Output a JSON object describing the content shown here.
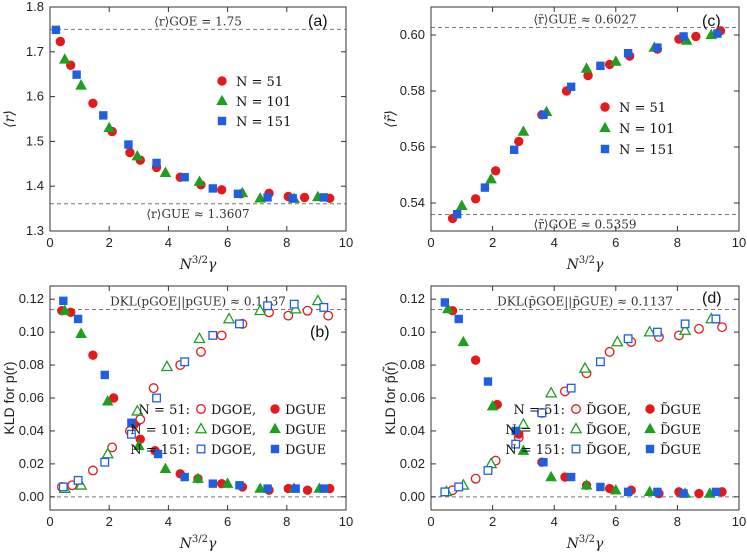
{
  "colors": {
    "n51": "#e31a1c",
    "n101": "#1f9e1f",
    "n151": "#1f5fe0",
    "frame": "#333333",
    "refline": "#777777"
  },
  "legend_r": [
    {
      "key": "n51",
      "shape": "circle",
      "label": "N = 51"
    },
    {
      "key": "n101",
      "shape": "triangle",
      "label": "N = 101"
    },
    {
      "key": "n151",
      "shape": "square",
      "label": "N = 151"
    }
  ],
  "legend_kld": [
    {
      "key": "n51",
      "open": "circle",
      "label": "N = 51:"
    },
    {
      "key": "n101",
      "open": "triangle",
      "label": "N = 101:"
    },
    {
      "key": "n151",
      "open": "square",
      "label": "N = 151:"
    }
  ],
  "chart_data": [
    {
      "id": "a",
      "panel_label": "(a)",
      "type": "scatter",
      "xlabel": "N^{3/2}γ",
      "ylabel": "⟨r⟩",
      "xlim": [
        0,
        10
      ],
      "ylim": [
        1.3,
        1.8
      ],
      "xticks": [
        0,
        2,
        4,
        6,
        8,
        10
      ],
      "yticks": [
        1.3,
        1.4,
        1.5,
        1.6,
        1.7,
        1.8
      ],
      "ref_lines": [
        {
          "y": 1.75,
          "label": "⟨r⟩GOE = 1.75",
          "label_pos": "above"
        },
        {
          "y": 1.3607,
          "label": "⟨r⟩GUE ≈ 1.3607",
          "label_pos": "below"
        }
      ],
      "legend_position": "center-right",
      "series": [
        {
          "name": "N = 51",
          "key": "n51",
          "marker": "circle",
          "filled": true,
          "x": [
            0.35,
            0.7,
            1.45,
            2.1,
            2.7,
            3.05,
            3.6,
            4.4,
            5.1,
            5.8,
            6.45,
            7.4,
            8.05,
            8.6,
            9.45
          ],
          "y": [
            1.723,
            1.67,
            1.585,
            1.522,
            1.475,
            1.458,
            1.442,
            1.42,
            1.403,
            1.392,
            1.383,
            1.384,
            1.377,
            1.375,
            1.373
          ]
        },
        {
          "name": "N = 101",
          "key": "n101",
          "marker": "triangle",
          "filled": true,
          "x": [
            0.5,
            1.05,
            2.0,
            2.95,
            3.9,
            5.05,
            6.5,
            7.1,
            8.25,
            9.05
          ],
          "y": [
            1.683,
            1.625,
            1.53,
            1.467,
            1.43,
            1.41,
            1.385,
            1.373,
            1.372,
            1.376
          ]
        },
        {
          "name": "N = 151",
          "key": "n151",
          "marker": "square",
          "filled": true,
          "x": [
            0.2,
            0.9,
            1.8,
            2.65,
            3.6,
            4.55,
            5.5,
            6.35,
            7.35,
            8.2,
            9.25
          ],
          "y": [
            1.749,
            1.649,
            1.558,
            1.493,
            1.452,
            1.42,
            1.395,
            1.383,
            1.375,
            1.373,
            1.375
          ]
        }
      ]
    },
    {
      "id": "c",
      "panel_label": "(c)",
      "type": "scatter",
      "xlabel": "N^{3/2}γ",
      "ylabel": "⟨r̃⟩",
      "xlim": [
        0,
        10
      ],
      "ylim": [
        0.53,
        0.61
      ],
      "xticks": [
        0,
        2,
        4,
        6,
        8,
        10
      ],
      "yticks": [
        0.54,
        0.56,
        0.58,
        0.6
      ],
      "ref_lines": [
        {
          "y": 0.6027,
          "label": "⟨r̃⟩GUE ≈ 0.6027",
          "label_pos": "above"
        },
        {
          "y": 0.5359,
          "label": "⟨r̃⟩GOE ≈ 0.5359",
          "label_pos": "below"
        }
      ],
      "legend_position": "center-right",
      "series": [
        {
          "name": "N = 51",
          "key": "n51",
          "marker": "circle",
          "filled": true,
          "x": [
            0.7,
            1.45,
            2.1,
            2.85,
            3.6,
            4.4,
            5.1,
            5.8,
            6.45,
            7.35,
            8.05,
            8.6,
            9.4
          ],
          "y": [
            0.5345,
            0.5415,
            0.5515,
            0.562,
            0.5715,
            0.58,
            0.5855,
            0.5895,
            0.5925,
            0.595,
            0.5985,
            0.5995,
            0.6015
          ]
        },
        {
          "name": "N = 101",
          "key": "n101",
          "marker": "triangle",
          "filled": true,
          "x": [
            1.0,
            1.95,
            3.0,
            3.75,
            5.05,
            6.0,
            7.25,
            8.3,
            9.1
          ],
          "y": [
            0.539,
            0.5485,
            0.5655,
            0.5725,
            0.588,
            0.5905,
            0.5955,
            0.598,
            0.6
          ]
        },
        {
          "name": "N = 151",
          "key": "n151",
          "marker": "square",
          "filled": true,
          "x": [
            0.85,
            1.75,
            2.7,
            3.65,
            4.55,
            5.5,
            6.4,
            7.35,
            8.2,
            9.3
          ],
          "y": [
            0.536,
            0.5455,
            0.559,
            0.5715,
            0.5815,
            0.589,
            0.5935,
            0.5955,
            0.5995,
            0.6005
          ]
        }
      ]
    },
    {
      "id": "b",
      "panel_label": "(b)",
      "type": "scatter",
      "xlabel": "N^{3/2}γ",
      "ylabel": "KLD for p(r)",
      "xlim": [
        0,
        10
      ],
      "ylim": [
        -0.008,
        0.128
      ],
      "xticks": [
        0,
        2,
        4,
        6,
        8,
        10
      ],
      "yticks": [
        0.0,
        0.02,
        0.04,
        0.06,
        0.08,
        0.1,
        0.12
      ],
      "ref_lines": [
        {
          "y": 0.1137,
          "label": "DKL(pGOE||pGUE) ≈ 0.1137",
          "label_pos": "above"
        },
        {
          "y": 0.0,
          "label": "",
          "label_pos": "none"
        }
      ],
      "legend_position": "center-right",
      "legend_entries": [
        {
          "label": "N = 51:",
          "open_label": "DGOE,",
          "filled_label": "DGUE"
        },
        {
          "label": "N = 101:",
          "open_label": "DGOE,",
          "filled_label": "DGUE"
        },
        {
          "label": "N = 151:",
          "open_label": "DGOE,",
          "filled_label": "DGUE"
        }
      ],
      "series": [
        {
          "name": "N = 51 DGOE",
          "key": "n51",
          "marker": "circle",
          "filled": false,
          "x": [
            0.4,
            0.75,
            1.45,
            2.1,
            2.7,
            3.05,
            3.5,
            4.4,
            5.1,
            5.8,
            6.5,
            7.4,
            8.05,
            8.7,
            9.4
          ],
          "y": [
            0.006,
            0.007,
            0.016,
            0.03,
            0.04,
            0.047,
            0.066,
            0.08,
            0.088,
            0.098,
            0.105,
            0.112,
            0.11,
            0.113,
            0.11
          ]
        },
        {
          "name": "N = 51 DGUE",
          "key": "n51",
          "marker": "circle",
          "filled": true,
          "x": [
            0.4,
            0.7,
            1.45,
            2.15,
            2.85,
            3.05,
            3.55,
            4.4,
            5.0,
            5.8,
            6.5,
            7.4,
            8.05,
            8.7,
            9.45
          ],
          "y": [
            0.113,
            0.112,
            0.086,
            0.06,
            0.044,
            0.035,
            0.028,
            0.014,
            0.011,
            0.008,
            0.006,
            0.004,
            0.005,
            0.004,
            0.005
          ]
        },
        {
          "name": "N = 101 DGOE",
          "key": "n101",
          "marker": "triangle",
          "filled": false,
          "x": [
            0.5,
            1.05,
            1.95,
            2.95,
            3.95,
            5.05,
            6.05,
            7.1,
            8.3,
            9.05
          ],
          "y": [
            0.005,
            0.007,
            0.026,
            0.052,
            0.079,
            0.096,
            0.108,
            0.113,
            0.114,
            0.119
          ]
        },
        {
          "name": "N = 101 DGUE",
          "key": "n101",
          "marker": "triangle",
          "filled": true,
          "x": [
            0.5,
            1.05,
            1.95,
            3.0,
            3.9,
            5.0,
            6.0,
            7.1,
            8.25,
            9.1
          ],
          "y": [
            0.113,
            0.099,
            0.058,
            0.031,
            0.017,
            0.011,
            0.008,
            0.005,
            0.005,
            0.005
          ]
        },
        {
          "name": "N = 151 DGOE",
          "key": "n151",
          "marker": "square",
          "filled": false,
          "x": [
            0.45,
            0.95,
            1.85,
            2.75,
            3.6,
            4.55,
            5.5,
            6.4,
            7.35,
            8.25,
            9.25
          ],
          "y": [
            0.006,
            0.01,
            0.021,
            0.038,
            0.06,
            0.082,
            0.098,
            0.105,
            0.116,
            0.117,
            0.115
          ]
        },
        {
          "name": "N = 151 DGUE",
          "key": "n151",
          "marker": "square",
          "filled": true,
          "x": [
            0.45,
            0.95,
            1.85,
            2.75,
            3.65,
            4.55,
            5.5,
            6.4,
            7.35,
            8.3,
            9.25
          ],
          "y": [
            0.119,
            0.108,
            0.074,
            0.045,
            0.026,
            0.012,
            0.008,
            0.007,
            0.005,
            0.005,
            0.005
          ]
        }
      ]
    },
    {
      "id": "d",
      "panel_label": "(d)",
      "type": "scatter",
      "xlabel": "N^{3/2}γ",
      "ylabel": "KLD for p̃(r̃)",
      "xlim": [
        0,
        10
      ],
      "ylim": [
        -0.008,
        0.128
      ],
      "xticks": [
        0,
        2,
        4,
        6,
        8,
        10
      ],
      "yticks": [
        0.0,
        0.02,
        0.04,
        0.06,
        0.08,
        0.1,
        0.12
      ],
      "ref_lines": [
        {
          "y": 0.1137,
          "label": "DKL(p̃GOE||p̃GUE) ≈ 0.1137",
          "label_pos": "above"
        },
        {
          "y": 0.0,
          "label": "",
          "label_pos": "none"
        }
      ],
      "legend_position": "center-right",
      "legend_entries": [
        {
          "label": "N = 51:",
          "open_label": "D̃GOE,",
          "filled_label": "D̃GUE"
        },
        {
          "label": "N = 101:",
          "open_label": "D̃GOE,",
          "filled_label": "D̃GUE"
        },
        {
          "label": "N = 151:",
          "open_label": "D̃GOE,",
          "filled_label": "D̃GUE"
        }
      ],
      "series": [
        {
          "name": "N = 51 D̃GOE",
          "key": "n51",
          "marker": "circle",
          "filled": false,
          "x": [
            0.7,
            1.45,
            2.1,
            2.85,
            3.6,
            4.35,
            5.05,
            5.8,
            6.5,
            7.4,
            8.05,
            8.7,
            9.45
          ],
          "y": [
            0.004,
            0.011,
            0.022,
            0.036,
            0.051,
            0.064,
            0.075,
            0.088,
            0.094,
            0.097,
            0.098,
            0.102,
            0.103
          ]
        },
        {
          "name": "N = 51 D̃GUE",
          "key": "n51",
          "marker": "circle",
          "filled": true,
          "x": [
            0.7,
            1.45,
            2.15,
            2.85,
            3.6,
            4.35,
            5.05,
            5.8,
            6.5,
            7.4,
            8.05,
            8.7,
            9.45
          ],
          "y": [
            0.113,
            0.083,
            0.056,
            0.038,
            0.021,
            0.012,
            0.007,
            0.005,
            0.004,
            0.002,
            0.003,
            0.002,
            0.003
          ]
        },
        {
          "name": "N = 101 D̃GOE",
          "key": "n101",
          "marker": "triangle",
          "filled": false,
          "x": [
            0.5,
            1.05,
            1.95,
            3.0,
            3.9,
            5.0,
            6.05,
            7.1,
            8.25,
            9.1
          ],
          "y": [
            0.003,
            0.007,
            0.02,
            0.044,
            0.063,
            0.078,
            0.094,
            0.1,
            0.101,
            0.108
          ]
        },
        {
          "name": "N = 101 D̃GUE",
          "key": "n101",
          "marker": "triangle",
          "filled": true,
          "x": [
            0.55,
            1.05,
            2.0,
            3.0,
            3.9,
            5.05,
            6.0,
            7.1,
            8.25,
            9.05
          ],
          "y": [
            0.114,
            0.094,
            0.055,
            0.028,
            0.012,
            0.007,
            0.004,
            0.003,
            0.002,
            0.002
          ]
        },
        {
          "name": "N = 151 D̃GOE",
          "key": "n151",
          "marker": "square",
          "filled": false,
          "x": [
            0.45,
            0.9,
            1.85,
            2.75,
            3.6,
            4.55,
            5.5,
            6.4,
            7.35,
            8.25,
            9.25
          ],
          "y": [
            0.003,
            0.006,
            0.016,
            0.032,
            0.051,
            0.066,
            0.082,
            0.096,
            0.1,
            0.105,
            0.108
          ]
        },
        {
          "name": "N = 151 D̃GUE",
          "key": "n151",
          "marker": "square",
          "filled": true,
          "x": [
            0.45,
            0.9,
            1.85,
            2.75,
            3.65,
            4.55,
            5.5,
            6.4,
            7.35,
            8.2,
            9.25
          ],
          "y": [
            0.118,
            0.108,
            0.07,
            0.04,
            0.021,
            0.012,
            0.006,
            0.003,
            0.003,
            0.002,
            0.003
          ]
        }
      ]
    }
  ]
}
